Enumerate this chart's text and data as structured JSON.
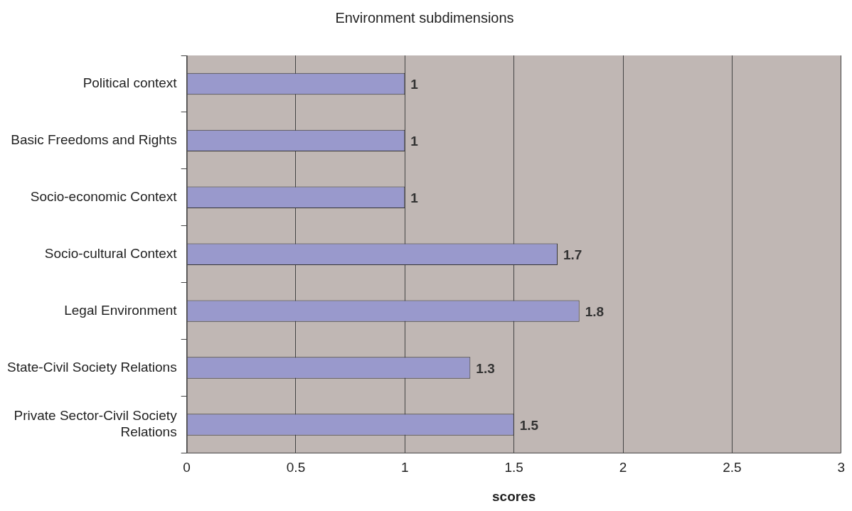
{
  "chart_data": {
    "type": "bar",
    "orientation": "horizontal",
    "title": "Environment subdimensions",
    "xlabel": "scores",
    "categories": [
      "Political context",
      "Basic Freedoms and Rights",
      "Socio-economic Context",
      "Socio-cultural Context",
      "Legal Environment",
      "State-Civil Society Relations",
      "Private Sector-Civil Society Relations"
    ],
    "values": [
      1,
      1,
      1,
      1.7,
      1.8,
      1.3,
      1.5
    ],
    "color": "#9999cc",
    "xlim": [
      0,
      3
    ],
    "xticks": [
      0,
      0.5,
      1,
      1.5,
      2,
      2.5,
      3
    ],
    "grid": "x",
    "legend": false,
    "data_labels": true
  }
}
